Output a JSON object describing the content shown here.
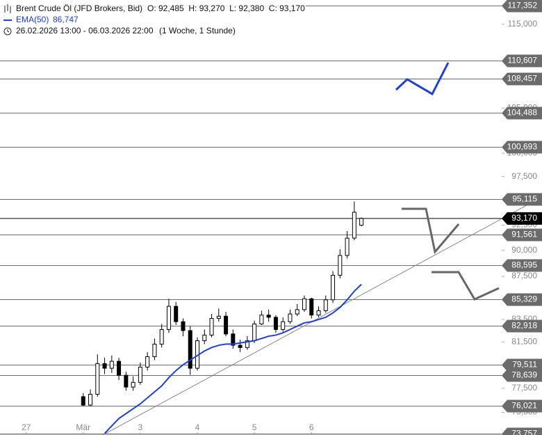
{
  "chart_data": {
    "type": "candlestick",
    "legend": {
      "instrument": "Brent Crude Öl (JFD Brokers, Bid)",
      "ohlc": "O: 92,485  H: 93,270  L: 92,380  C: 93,170",
      "ema_value": "86,747",
      "range": "26.02.2026 13:00 - 06.03.2026 22:00",
      "period": "(1 Woche, 1 Stunde)"
    },
    "log_scale": true,
    "xlim": [
      -11,
      200
    ],
    "xticks": [
      {
        "value": 0,
        "label": "27"
      },
      {
        "value": 24,
        "label": "Mär"
      },
      {
        "value": 48,
        "label": "3"
      },
      {
        "value": 72,
        "label": "4"
      },
      {
        "value": 96,
        "label": "5"
      },
      {
        "value": 120,
        "label": "6"
      }
    ],
    "ylim": [
      73670,
      118070
    ],
    "yticks": [
      {
        "value": 115000,
        "label": "115,000"
      },
      {
        "value": 105000,
        "label": "105,000"
      },
      {
        "value": 100000,
        "label": "100,000"
      },
      {
        "value": 97500,
        "label": "97,500"
      },
      {
        "value": 92500,
        "label": "92,500"
      },
      {
        "value": 90000,
        "label": "90,000"
      },
      {
        "value": 87500,
        "label": "87,500"
      },
      {
        "value": 83500,
        "label": "83,500"
      },
      {
        "value": 81500,
        "label": "81,500"
      },
      {
        "value": 77500,
        "label": "77,500"
      },
      {
        "value": 75500,
        "label": "75,500"
      }
    ],
    "x": [
      24,
      27,
      30,
      33,
      36,
      39,
      42,
      45,
      48,
      51,
      54,
      57,
      60,
      63,
      66,
      69,
      72,
      75,
      78,
      81,
      84,
      87,
      90,
      93,
      96,
      99,
      102,
      105,
      108,
      111,
      114,
      117,
      120,
      123,
      126,
      129,
      132,
      135,
      138,
      141
    ],
    "open": [
      76800,
      76100,
      77000,
      79600,
      79200,
      79800,
      78600,
      77600,
      78000,
      79300,
      80200,
      81300,
      82600,
      84700,
      83300,
      82500,
      79200,
      81600,
      82100,
      83600,
      83800,
      82200,
      81200,
      81000,
      81600,
      83100,
      83900,
      83700,
      82600,
      83300,
      84000,
      84400,
      85400,
      83900,
      84300,
      85300,
      87600,
      89500,
      91200,
      92485
    ],
    "high": [
      77100,
      77400,
      80400,
      80100,
      80300,
      80100,
      78900,
      78500,
      79700,
      80600,
      81800,
      83100,
      85400,
      85100,
      83600,
      82900,
      81900,
      82600,
      84000,
      84500,
      84200,
      82600,
      81700,
      82000,
      83400,
      84300,
      84400,
      83900,
      83700,
      84400,
      84900,
      85700,
      85500,
      84700,
      85700,
      88000,
      90100,
      91900,
      94900,
      93270
    ],
    "low": [
      76021,
      76000,
      76800,
      78700,
      78800,
      78200,
      77300,
      77300,
      77800,
      79000,
      79900,
      81000,
      82300,
      83000,
      82000,
      78639,
      79000,
      81300,
      81900,
      83300,
      82000,
      80900,
      80600,
      80800,
      81400,
      83000,
      83300,
      82300,
      82400,
      83100,
      83800,
      84200,
      83600,
      83700,
      84100,
      85000,
      87300,
      89200,
      91000,
      92380
    ],
    "close": [
      76100,
      77000,
      79600,
      79200,
      79800,
      78600,
      77600,
      78000,
      79300,
      80200,
      81300,
      82600,
      84700,
      83300,
      82500,
      79200,
      81600,
      82100,
      83600,
      83800,
      82200,
      81200,
      81000,
      81600,
      83100,
      83900,
      83700,
      82600,
      83300,
      84000,
      84400,
      85400,
      83900,
      84300,
      85300,
      87600,
      89500,
      91200,
      93800,
      93170
    ],
    "up_color": "#ffffff",
    "down_color": "#000000",
    "series": [
      {
        "name": "EMA(50)",
        "color": "#1f3fd8",
        "values": [
          null,
          null,
          null,
          73800,
          74400,
          75000,
          75400,
          75800,
          76200,
          76700,
          77200,
          77700,
          78400,
          79000,
          79500,
          79900,
          80300,
          80700,
          81000,
          81200,
          81300,
          81300,
          81400,
          81500,
          81600,
          81800,
          82000,
          82100,
          82300,
          82600,
          82900,
          83200,
          83300,
          83500,
          83700,
          84100,
          84600,
          85300,
          86100,
          86747
        ]
      }
    ],
    "levels": [
      {
        "value": 117352,
        "label": "117,352"
      },
      {
        "value": 110607,
        "label": "110,607"
      },
      {
        "value": 108457,
        "label": "108,457"
      },
      {
        "value": 104488,
        "label": "104,488"
      },
      {
        "value": 100693,
        "label": "100,693"
      },
      {
        "value": 95115,
        "label": "95,115"
      },
      {
        "value": 91561,
        "label": "91,561"
      },
      {
        "value": 88595,
        "label": "88,595"
      },
      {
        "value": 85329,
        "label": "85,329"
      },
      {
        "value": 82918,
        "label": "82,918"
      },
      {
        "value": 79511,
        "label": "79,511"
      },
      {
        "value": 78639,
        "label": "78,639"
      },
      {
        "value": 76021,
        "label": "76,021"
      },
      {
        "value": 73757,
        "label": "73,757"
      }
    ],
    "level_color": "#6b6b6b",
    "last_price": {
      "value": 93170,
      "label": "93,170"
    }
  }
}
